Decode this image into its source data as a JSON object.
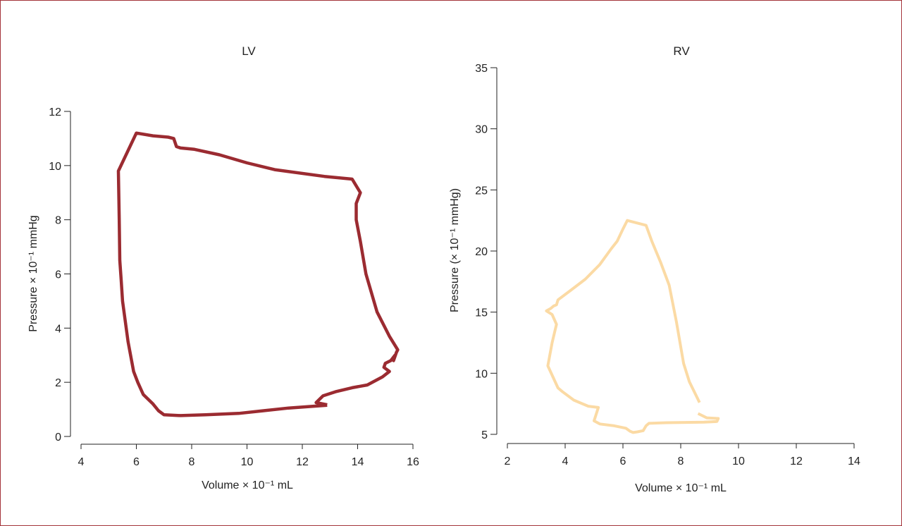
{
  "chart_data": [
    {
      "type": "line",
      "title": "LV",
      "xlabel": "Volume × 10⁻¹ mL",
      "ylabel": "Pressure × 10⁻¹ mmHg",
      "xlim": [
        4,
        16
      ],
      "ylim": [
        0,
        12
      ],
      "xticks": [
        4,
        6,
        8,
        10,
        12,
        14,
        16
      ],
      "yticks": [
        0,
        2,
        4,
        6,
        8,
        10,
        12
      ],
      "color": "#9b2b31",
      "series": [
        {
          "x": [
            12.9,
            12.5,
            12.75,
            13.2,
            13.8,
            14.35,
            14.9,
            15.15,
            14.95,
            15.0,
            15.2,
            15.35,
            15.3,
            15.4,
            15.45,
            15.15,
            14.7,
            14.3,
            14.1,
            13.95,
            13.95,
            14.1,
            13.8,
            12.8,
            11.0,
            10.0,
            9.0,
            8.1,
            7.6,
            7.45,
            7.35,
            7.15,
            6.6,
            6.0,
            5.35,
            5.38,
            5.4,
            5.45,
            5.5,
            5.7,
            5.9,
            6.05,
            6.25,
            6.6,
            6.8,
            7.0,
            7.6,
            8.5,
            9.7,
            10.6,
            11.5,
            12.9
          ],
          "y": [
            1.17,
            1.25,
            1.5,
            1.65,
            1.8,
            1.9,
            2.2,
            2.4,
            2.55,
            2.7,
            2.8,
            3.0,
            2.8,
            3.1,
            3.2,
            3.7,
            4.6,
            6.0,
            7.2,
            8.0,
            8.6,
            9.0,
            9.5,
            9.6,
            9.85,
            10.1,
            10.4,
            10.6,
            10.65,
            10.7,
            11.0,
            11.05,
            11.1,
            11.2,
            9.8,
            8.0,
            6.5,
            5.8,
            5.0,
            3.5,
            2.4,
            2.0,
            1.55,
            1.2,
            0.95,
            0.8,
            0.77,
            0.8,
            0.85,
            0.95,
            1.05,
            1.15
          ]
        }
      ]
    },
    {
      "type": "line",
      "title": "RV",
      "xlabel": "Volume × 10⁻¹ mL",
      "ylabel": "Pressure (× 10⁻¹ mmHg)",
      "xlim": [
        2,
        14
      ],
      "ylim": [
        5,
        35
      ],
      "xticks": [
        2,
        4,
        6,
        8,
        10,
        12,
        14
      ],
      "yticks": [
        5,
        10,
        15,
        20,
        25,
        30,
        35
      ],
      "color": "#fbdaa4",
      "series": [
        {
          "x": [
            8.6,
            8.9,
            9.3,
            9.25,
            8.8,
            7.5,
            6.9,
            6.8,
            6.7,
            6.5,
            6.35,
            6.25,
            6.1,
            5.7,
            5.2,
            5.0,
            5.15,
            4.8,
            4.3,
            3.9,
            3.75,
            3.4,
            3.55,
            3.65,
            3.7,
            3.55,
            3.35,
            3.5,
            3.6,
            3.7,
            3.75,
            4.2,
            4.7,
            5.2,
            5.6,
            5.8,
            6.0,
            6.15,
            6.8,
            7.0,
            7.3,
            7.6,
            7.85,
            8.1,
            8.3,
            8.65
          ],
          "y": [
            6.7,
            6.35,
            6.3,
            6.05,
            6.0,
            5.95,
            5.9,
            5.7,
            5.3,
            5.2,
            5.15,
            5.25,
            5.5,
            5.7,
            5.85,
            6.1,
            7.2,
            7.3,
            7.8,
            8.5,
            8.8,
            10.6,
            12.5,
            13.5,
            14.0,
            14.8,
            15.1,
            15.3,
            15.5,
            15.6,
            16.0,
            16.8,
            17.7,
            18.9,
            20.2,
            20.8,
            21.8,
            22.5,
            22.1,
            20.8,
            19.1,
            17.2,
            14.2,
            10.8,
            9.3,
            7.6
          ]
        }
      ]
    }
  ]
}
